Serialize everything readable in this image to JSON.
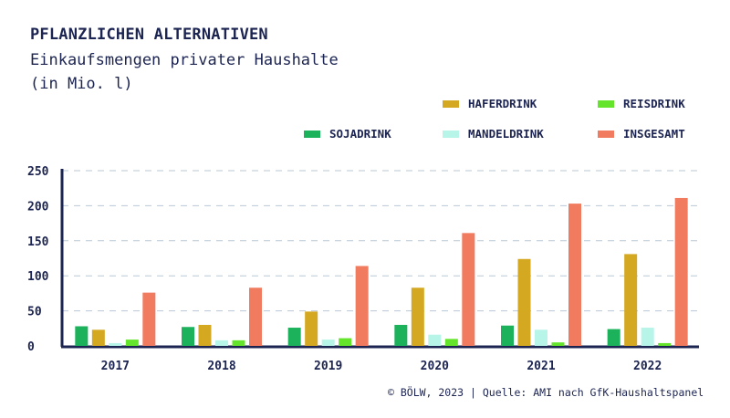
{
  "header": {
    "title": "PFLANZLICHEN ALTERNATIVEN",
    "subtitle_line1": "Einkaufsmengen privater Haushalte",
    "subtitle_line2": "(in Mio. l)"
  },
  "source": "© BÖLW, 2023 | Quelle: AMI nach GfK-Haushaltspanel",
  "colors": {
    "axis": "#1c2452",
    "grid": "#b9c8d6",
    "sojadrink": "#1bb25b",
    "haferdrink": "#d5a821",
    "mandeldrink": "#b6f5e7",
    "reisdrink": "#64e52b",
    "insgesamt": "#f07b5f"
  },
  "chart_data": {
    "type": "bar",
    "title": "PFLANZLICHEN ALTERNATIVEN",
    "subtitle": "Einkaufsmengen privater Haushalte (in Mio. l)",
    "categories": [
      "2017",
      "2018",
      "2019",
      "2020",
      "2021",
      "2022"
    ],
    "series": [
      {
        "name": "SOJADRINK",
        "color": "#1bb25b",
        "values": [
          28,
          27,
          26,
          30,
          29,
          24
        ]
      },
      {
        "name": "HAFERDRINK",
        "color": "#d5a821",
        "values": [
          23,
          30,
          49,
          83,
          124,
          131
        ]
      },
      {
        "name": "MANDELDRINK",
        "color": "#b6f5e7",
        "values": [
          4,
          8,
          9,
          16,
          23,
          26
        ]
      },
      {
        "name": "REISDRINK",
        "color": "#64e52b",
        "values": [
          9,
          8,
          11,
          10,
          5,
          4
        ]
      },
      {
        "name": "INSGESAMT",
        "color": "#f07b5f",
        "values": [
          76,
          83,
          114,
          161,
          203,
          211
        ]
      }
    ],
    "yticks": [
      0,
      50,
      100,
      150,
      200,
      250
    ],
    "ylim": [
      0,
      250
    ],
    "grid": true,
    "legend_position": "top-right"
  }
}
